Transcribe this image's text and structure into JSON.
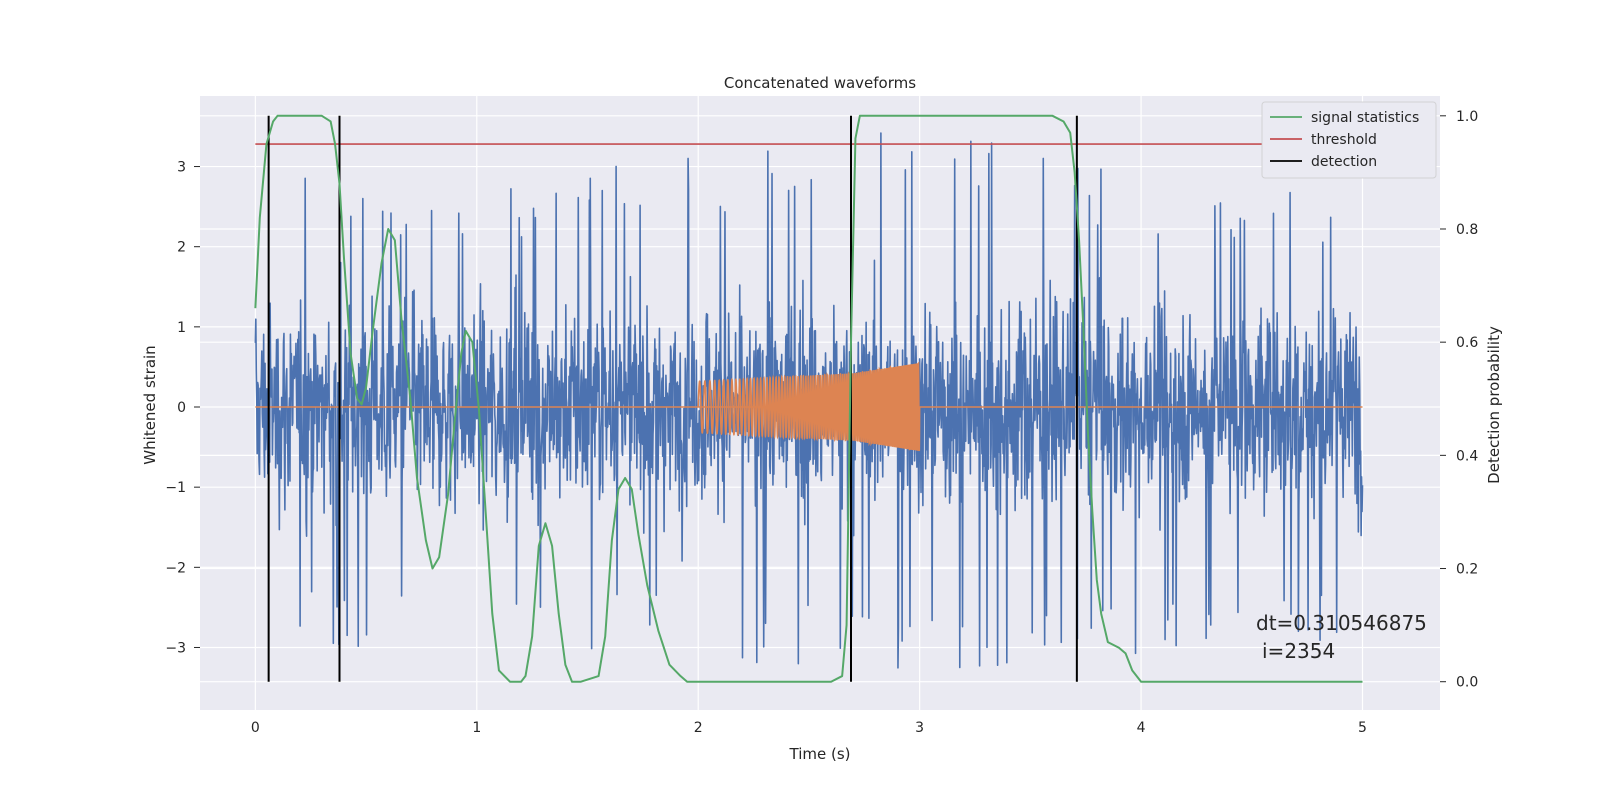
{
  "chart_data": {
    "type": "line",
    "title": "Concatenated waveforms",
    "xlabel": "Time (s)",
    "ylabel": "Whitened strain",
    "y2label": "Detection probability",
    "xlim": [
      -0.25,
      5.35
    ],
    "ylim": [
      -3.78,
      3.88
    ],
    "y2lim": [
      -0.05,
      1.035
    ],
    "x_ticks": [
      0,
      1,
      2,
      3,
      4,
      5
    ],
    "y_ticks": [
      -3,
      -2,
      -1,
      0,
      1,
      2,
      3
    ],
    "y2_ticks": [
      0.0,
      0.2,
      0.4,
      0.6,
      0.8,
      1.0
    ],
    "x_tick_labels": [
      "0",
      "1",
      "2",
      "3",
      "4",
      "5"
    ],
    "y_tick_labels": [
      "−3",
      "−2",
      "−1",
      "0",
      "1",
      "2",
      "3"
    ],
    "y2_tick_labels": [
      "0.0",
      "0.2",
      "0.4",
      "0.6",
      "0.8",
      "1.0"
    ],
    "grid": true,
    "legend_position": "top-right",
    "series": [
      {
        "name": "",
        "axis": "left",
        "color": "#4c72b0",
        "kind": "whitened-strain-noise",
        "x_range": [
          0,
          5
        ],
        "envelope": {
          "x": [
            0,
            1,
            2,
            3,
            4,
            5
          ],
          "max": [
            3.05,
            2.7,
            3.2,
            3.55,
            2.9,
            2.6
          ],
          "min": [
            -2.9,
            -3.1,
            -3.1,
            -3.45,
            -3.1,
            -2.9
          ]
        }
      },
      {
        "name": "",
        "axis": "left",
        "color": "#dd8452",
        "kind": "injected-chirp",
        "x_range": [
          2.0,
          3.0
        ],
        "amplitude_points": {
          "x": [
            2.0,
            2.7,
            3.0
          ],
          "y": [
            0.32,
            0.42,
            0.55
          ]
        },
        "frequency_hz": [
          40,
          140
        ]
      },
      {
        "name": "signal statistics",
        "axis": "right",
        "color": "#55a868",
        "x": [
          0,
          0.02,
          0.05,
          0.08,
          0.1,
          0.13,
          0.2,
          0.3,
          0.34,
          0.36,
          0.38,
          0.4,
          0.43,
          0.46,
          0.48,
          0.5,
          0.53,
          0.57,
          0.6,
          0.63,
          0.66,
          0.7,
          0.73,
          0.77,
          0.8,
          0.83,
          0.87,
          0.9,
          0.93,
          0.95,
          0.98,
          1.01,
          1.04,
          1.07,
          1.1,
          1.15,
          1.2,
          1.22,
          1.25,
          1.28,
          1.31,
          1.34,
          1.37,
          1.4,
          1.43,
          1.47,
          1.55,
          1.58,
          1.61,
          1.64,
          1.67,
          1.7,
          1.73,
          1.77,
          1.82,
          1.87,
          1.92,
          1.95,
          2.0,
          2.3,
          2.6,
          2.65,
          2.67,
          2.69,
          2.71,
          2.73,
          2.76,
          2.8,
          3.0,
          3.3,
          3.6,
          3.65,
          3.68,
          3.7,
          3.72,
          3.74,
          3.76,
          3.78,
          3.8,
          3.82,
          3.85,
          3.9,
          3.93,
          3.96,
          4.0,
          4.5,
          5.0
        ],
        "y": [
          0.66,
          0.82,
          0.95,
          0.99,
          1.0,
          1.0,
          1.0,
          1.0,
          0.99,
          0.95,
          0.88,
          0.75,
          0.58,
          0.5,
          0.49,
          0.52,
          0.62,
          0.74,
          0.8,
          0.78,
          0.64,
          0.5,
          0.36,
          0.25,
          0.2,
          0.22,
          0.33,
          0.46,
          0.58,
          0.62,
          0.6,
          0.48,
          0.3,
          0.12,
          0.02,
          0.0,
          0.0,
          0.01,
          0.08,
          0.24,
          0.28,
          0.24,
          0.12,
          0.03,
          0.0,
          0.0,
          0.01,
          0.08,
          0.25,
          0.34,
          0.36,
          0.34,
          0.26,
          0.17,
          0.09,
          0.03,
          0.01,
          0.0,
          0.0,
          0.0,
          0.0,
          0.01,
          0.1,
          0.6,
          0.96,
          1.0,
          1.0,
          1.0,
          1.0,
          1.0,
          1.0,
          0.99,
          0.97,
          0.9,
          0.78,
          0.62,
          0.44,
          0.3,
          0.18,
          0.12,
          0.07,
          0.06,
          0.05,
          0.02,
          0.0,
          0.0,
          0.0
        ]
      },
      {
        "name": "threshold",
        "axis": "right",
        "color": "#c44e52",
        "x": [
          0,
          5.1
        ],
        "y": [
          0.95,
          0.95
        ]
      },
      {
        "name": "detection",
        "axis": "right",
        "color": "#000000",
        "kind": "vertical-lines",
        "x": [
          0.06,
          0.38,
          2.69,
          3.71
        ],
        "y_range": [
          0.0,
          1.0
        ]
      }
    ],
    "annotations": {
      "dt_text": "dt=0.310546875",
      "i_text": "i=2354"
    }
  }
}
